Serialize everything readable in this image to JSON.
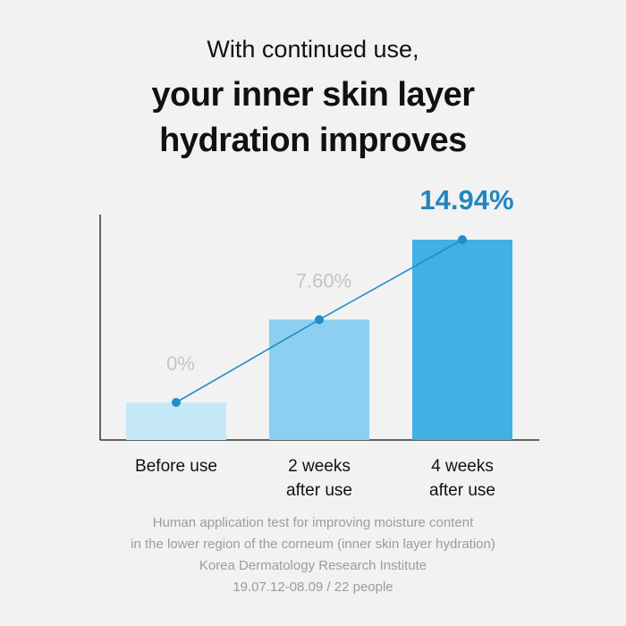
{
  "header": {
    "line1": "With continued use,",
    "line2": "your inner skin layer",
    "line3": "hydration improves"
  },
  "chart_data": {
    "type": "bar",
    "categories": [
      [
        "Before use"
      ],
      [
        "2 weeks",
        "after use"
      ],
      [
        "4 weeks",
        "after use"
      ]
    ],
    "values": [
      0,
      7.6,
      14.94
    ],
    "value_labels": [
      "0%",
      "7.60%",
      "14.94%"
    ],
    "overlay_line": true,
    "colors": {
      "bars": [
        "#c5e8f8",
        "#8ccff0",
        "#41b1e3"
      ],
      "line": "#1f8ec9",
      "label_muted": "#c4c4c4",
      "label_highlight": "#2386c1",
      "axis": "#333333"
    }
  },
  "footer": {
    "lines": [
      "Human application test for improving moisture content",
      "in the lower region of the corneum (inner skin layer hydration)",
      "Korea Dermatology Research Institute",
      "19.07.12-08.09 / 22 people"
    ]
  }
}
